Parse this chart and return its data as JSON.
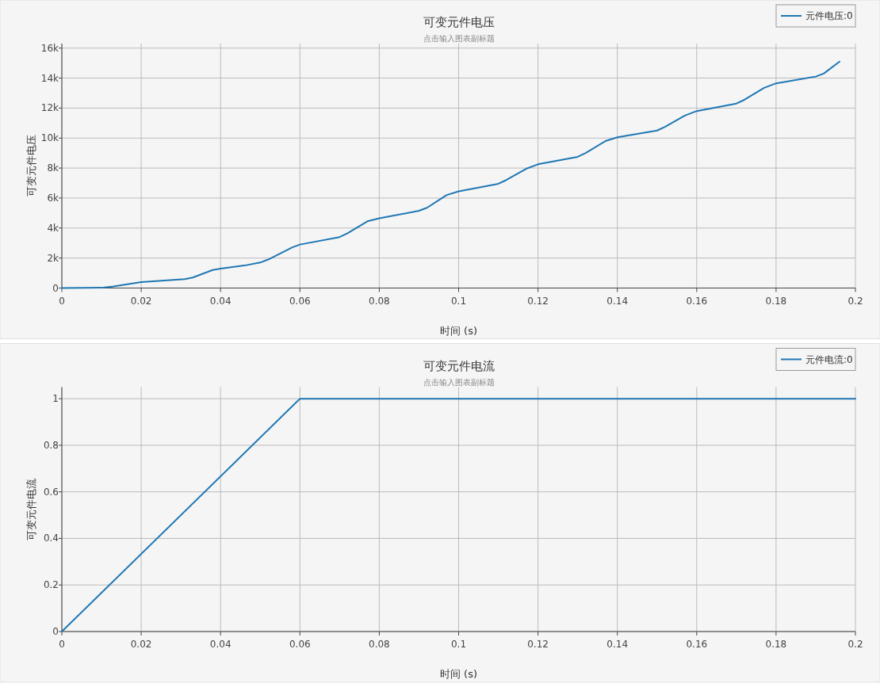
{
  "chart_data": [
    {
      "type": "line",
      "title": "可变元件电压",
      "subtitle": "点击输入图表副标题",
      "xlabel": "时间 (s)",
      "ylabel": "可变元件电压",
      "x": [
        0,
        0.01,
        0.013,
        0.02,
        0.031,
        0.033,
        0.038,
        0.04,
        0.046,
        0.05,
        0.052,
        0.058,
        0.06,
        0.07,
        0.072,
        0.077,
        0.08,
        0.09,
        0.092,
        0.097,
        0.1,
        0.11,
        0.112,
        0.117,
        0.12,
        0.13,
        0.132,
        0.137,
        0.14,
        0.15,
        0.152,
        0.157,
        0.16,
        0.17,
        0.172,
        0.177,
        0.18,
        0.19,
        0.192,
        0.196
      ],
      "series": [
        {
          "name": "元件电压:0",
          "color": "#1f77b4",
          "values": [
            0,
            20,
            100,
            400,
            600,
            700,
            1200,
            1300,
            1500,
            1700,
            1900,
            2700,
            2900,
            3400,
            3650,
            4450,
            4650,
            5150,
            5350,
            6200,
            6450,
            6950,
            7200,
            7950,
            8250,
            8750,
            9000,
            9800,
            10050,
            10500,
            10750,
            11500,
            11800,
            12300,
            12550,
            13350,
            13650,
            14100,
            14300,
            15100
          ]
        }
      ],
      "xlim": [
        0,
        0.2
      ],
      "xticks": [
        0,
        0.02,
        0.04,
        0.06,
        0.08,
        0.1,
        0.12,
        0.14,
        0.16,
        0.18,
        0.2
      ],
      "ylim": [
        0,
        16300
      ],
      "yticks": [
        0,
        {
          "value": 2000,
          "label": "2k"
        },
        {
          "value": 4000,
          "label": "4k"
        },
        {
          "value": 6000,
          "label": "6k"
        },
        {
          "value": 8000,
          "label": "8k"
        },
        {
          "value": 10000,
          "label": "10k"
        },
        {
          "value": 12000,
          "label": "12k"
        },
        {
          "value": 14000,
          "label": "14k"
        },
        {
          "value": 16000,
          "label": "16k"
        }
      ],
      "grid": true,
      "legend": "top right",
      "marker": "none",
      "line_style": "solid"
    },
    {
      "type": "line",
      "title": "可变元件电流",
      "subtitle": "点击输入图表副标题",
      "xlabel": "时间 (s)",
      "ylabel": "可变元件电流",
      "x": [
        0,
        0.06,
        0.2
      ],
      "series": [
        {
          "name": "元件电流:0",
          "color": "#1f77b4",
          "values": [
            0,
            1,
            1
          ]
        }
      ],
      "xlim": [
        0,
        0.2
      ],
      "xticks": [
        0,
        0.02,
        0.04,
        0.06,
        0.08,
        0.1,
        0.12,
        0.14,
        0.16,
        0.18,
        0.2
      ],
      "ylim": [
        0,
        1.05
      ],
      "yticks": [
        0,
        0.2,
        0.4,
        0.6,
        0.8,
        1
      ],
      "grid": true,
      "legend": "top right",
      "marker": "none",
      "line_style": "solid"
    }
  ]
}
